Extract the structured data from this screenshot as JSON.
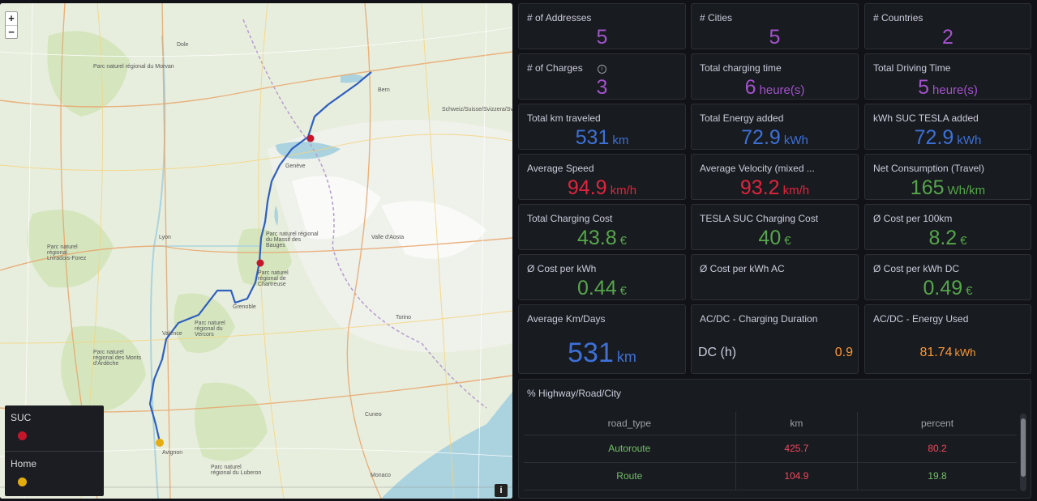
{
  "map": {
    "zoom_in": "+",
    "zoom_out": "−",
    "info_label": "i",
    "legend": [
      {
        "label": "SUC",
        "color": "#c4162a"
      },
      {
        "label": "Home",
        "color": "#e5ac0e"
      }
    ],
    "labels": [
      {
        "id": "parc-morvan",
        "text": "Parc naturel régional du Morvan"
      },
      {
        "id": "dole",
        "text": "Dole"
      },
      {
        "id": "bern",
        "text": "Bern"
      },
      {
        "id": "lyon",
        "text": "Lyon"
      },
      {
        "id": "torino",
        "text": "Torino"
      },
      {
        "id": "monaco",
        "text": "Monaco"
      },
      {
        "id": "geneve",
        "text": "Genève"
      },
      {
        "id": "valence",
        "text": "Valence"
      },
      {
        "id": "grenoble",
        "text": "Grenoble"
      },
      {
        "id": "schweiz",
        "text": "Schweiz/Suisse/Svizzera/Svizra"
      },
      {
        "id": "vercors",
        "text": "Parc naturel régional du Vercors"
      },
      {
        "id": "ardeche",
        "text": "Parc naturel régional des Monts d'Ardèche"
      },
      {
        "id": "luberon",
        "text": "Parc naturel régional du Luberon"
      },
      {
        "id": "chartreuse",
        "text": "Parc naturel régional de Chartreuse"
      },
      {
        "id": "bauges",
        "text": "Parc naturel régional du Massif des Bauges"
      },
      {
        "id": "livradois",
        "text": "Parc naturel régional Livradois-Forez"
      },
      {
        "id": "valle-aosta",
        "text": "Valle d'Aosta"
      },
      {
        "id": "cuneo",
        "text": "Cuneo"
      },
      {
        "id": "avignon",
        "text": "Avignon"
      }
    ]
  },
  "stats": [
    {
      "id": "addresses",
      "title": "# of Addresses",
      "value": "5",
      "unit": "",
      "color": "purple"
    },
    {
      "id": "cities",
      "title": "# Cities",
      "value": "5",
      "unit": "",
      "color": "purple"
    },
    {
      "id": "countries",
      "title": "# Countries",
      "value": "2",
      "unit": "",
      "color": "purple"
    },
    {
      "id": "charges",
      "title": "# of Charges",
      "value": "3",
      "unit": "",
      "color": "purple",
      "info": "i"
    },
    {
      "id": "charging-time",
      "title": "Total charging time",
      "value": "6",
      "unit": "heure(s)",
      "color": "purple"
    },
    {
      "id": "driving-time",
      "title": "Total Driving Time",
      "value": "5",
      "unit": "heure(s)",
      "color": "purple"
    },
    {
      "id": "km-traveled",
      "title": "Total km traveled",
      "value": "531",
      "unit": "km",
      "color": "blue"
    },
    {
      "id": "energy-added",
      "title": "Total Energy added",
      "value": "72.9",
      "unit": "kWh",
      "color": "blue"
    },
    {
      "id": "kwh-suc",
      "title": "kWh SUC TESLA added",
      "value": "72.9",
      "unit": "kWh",
      "color": "blue"
    },
    {
      "id": "avg-speed",
      "title": "Average Speed",
      "value": "94.9",
      "unit": "km/h",
      "color": "red"
    },
    {
      "id": "avg-velocity",
      "title": "Average Velocity (mixed ...",
      "value": "93.2",
      "unit": "km/h",
      "color": "red"
    },
    {
      "id": "net-consumption",
      "title": "Net Consumption (Travel)",
      "value": "165",
      "unit": "Wh/km",
      "color": "green"
    },
    {
      "id": "charging-cost",
      "title": "Total Charging Cost",
      "value": "43.8",
      "unit": "€",
      "color": "green"
    },
    {
      "id": "suc-cost",
      "title": "TESLA SUC Charging Cost",
      "value": "40",
      "unit": "€",
      "color": "green"
    },
    {
      "id": "cost-100km",
      "title": "Ø Cost per 100km",
      "value": "8.2",
      "unit": "€",
      "color": "green"
    },
    {
      "id": "cost-kwh",
      "title": "Ø Cost per kWh",
      "value": "0.44",
      "unit": "€",
      "color": "green"
    },
    {
      "id": "cost-kwh-ac",
      "title": "Ø Cost per kWh AC",
      "value": "",
      "unit": "",
      "color": "green"
    },
    {
      "id": "cost-kwh-dc",
      "title": "Ø Cost per kWh DC",
      "value": "0.49",
      "unit": "€",
      "color": "green"
    }
  ],
  "avg_km_days": {
    "title": "Average Km/Days",
    "value": "531",
    "unit": "km"
  },
  "acdc_duration": {
    "title": "AC/DC - Charging Duration",
    "label": "DC (h)",
    "value": "0.9"
  },
  "acdc_energy": {
    "title": "AC/DC - Energy Used",
    "value": "81.74",
    "unit": "kWh"
  },
  "road_table": {
    "title": "% Highway/Road/City",
    "columns": [
      "road_type",
      "km",
      "percent"
    ],
    "rows": [
      {
        "road_type": "Autoroute",
        "km": "425.7",
        "percent": "80.2",
        "km_color": "#f2495c",
        "pct_color": "#f2495c"
      },
      {
        "road_type": "Route",
        "km": "104.9",
        "percent": "19.8",
        "km_color": "#f2495c",
        "pct_color": "#73bf69"
      }
    ]
  }
}
